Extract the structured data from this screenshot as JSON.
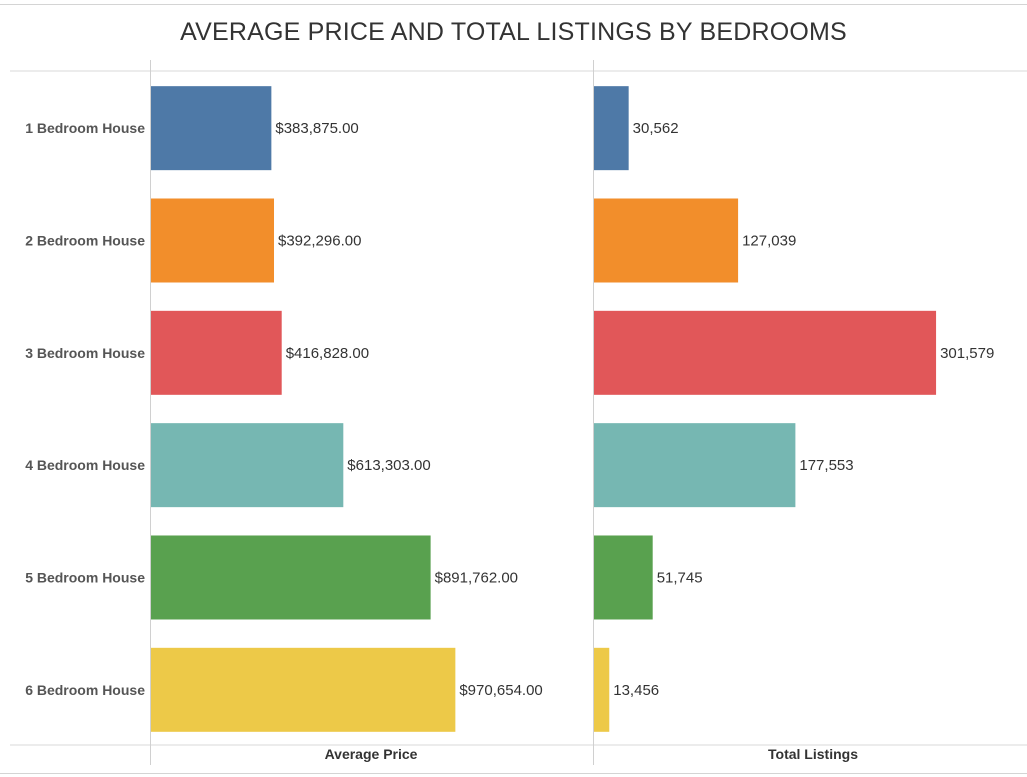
{
  "chart_data": {
    "type": "bar",
    "orientation": "horizontal",
    "title": "AVERAGE PRICE AND TOTAL LISTINGS BY BEDROOMS",
    "categories": [
      "1 Bedroom House",
      "2 Bedroom House",
      "3 Bedroom House",
      "4 Bedroom House",
      "5 Bedroom House",
      "6 Bedroom House"
    ],
    "colors": [
      "#4e79a7",
      "#f28e2b",
      "#e15759",
      "#76b7b2",
      "#59a14f",
      "#edc948"
    ],
    "series": [
      {
        "name": "Average Price",
        "values": [
          383875,
          392296,
          416828,
          613303,
          891762,
          970654
        ],
        "labels": [
          "$383,875.00",
          "$392,296.00",
          "$416,828.00",
          "$613,303.00",
          "$891,762.00",
          "$970,654.00"
        ],
        "xlim": [
          0,
          1180000
        ]
      },
      {
        "name": "Total Listings",
        "values": [
          30562,
          127039,
          301579,
          177553,
          51745,
          13456
        ],
        "labels": [
          "30,562",
          "127,039",
          "301,579",
          "177,553",
          "51,745",
          "13,456"
        ],
        "xlim": [
          0,
          365000
        ]
      }
    ],
    "grid": false,
    "legend": "none"
  }
}
